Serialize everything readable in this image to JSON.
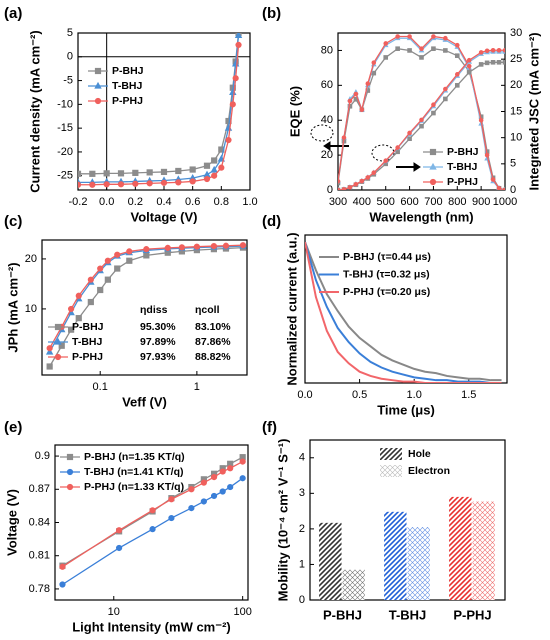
{
  "chart_data": [
    {
      "type": "line",
      "label": "(a)",
      "x_label": "Voltage (V)",
      "y_label": "Current density (mA cm⁻²)",
      "xlim": [
        -0.2,
        1.0
      ],
      "xticks": [
        -0.2,
        {
          "value": 0,
          "label": "0.0"
        },
        0.2,
        0.4,
        0.6,
        0.8,
        {
          "value": 1,
          "label": "1.0"
        }
      ],
      "ylim": [
        -28,
        5
      ],
      "yticks": [
        5,
        0,
        -5,
        -10,
        -15,
        -20,
        -25
      ],
      "zero_lines": true,
      "legend": "center left",
      "x": [
        -0.2,
        -0.1,
        0,
        0.1,
        0.2,
        0.3,
        0.4,
        0.5,
        0.6,
        0.7,
        0.75,
        0.8,
        0.85,
        0.88,
        0.9,
        0.92
      ],
      "series": [
        {
          "name": "P-BHJ",
          "color": "#8c8c8c",
          "marker": "square",
          "values": [
            -24.6,
            -24.6,
            -24.5,
            -24.5,
            -24.4,
            -24.3,
            -24.2,
            -24.0,
            -23.7,
            -22.9,
            -21.8,
            -19.5,
            -13.5,
            -6.5,
            -1.0,
            5.0
          ]
        },
        {
          "name": "T-BHJ",
          "color": "#4a8fd4",
          "marker": "triangle",
          "values": [
            -26.4,
            -26.4,
            -26.3,
            -26.3,
            -26.2,
            -26.1,
            -26.0,
            -25.8,
            -25.5,
            -24.8,
            -23.8,
            -21.5,
            -15.0,
            -7.5,
            -1.5,
            4.5
          ]
        },
        {
          "name": "P-PHJ",
          "color": "#f0605d",
          "marker": "circle",
          "values": [
            -26.9,
            -26.9,
            -26.8,
            -26.8,
            -26.7,
            -26.6,
            -26.5,
            -26.4,
            -26.2,
            -25.7,
            -25.0,
            -23.3,
            -17.5,
            -10.0,
            -4.5,
            2.5
          ]
        }
      ]
    },
    {
      "type": "line",
      "label": "(b)",
      "x_label": "Wavelength (nm)",
      "y_label": "EQE (%)",
      "y2_label": "Integrated JSC (mA cm⁻²)",
      "xlim": [
        300,
        1000
      ],
      "xticks": [
        300,
        400,
        500,
        600,
        700,
        800,
        900,
        1000
      ],
      "ylim": [
        0,
        90
      ],
      "yticks": [
        0,
        20,
        40,
        60,
        80
      ],
      "y2lim": [
        0,
        30
      ],
      "y2ticks": [
        0,
        5,
        10,
        15,
        20,
        25,
        30
      ],
      "legend": "lower right",
      "x": [
        300,
        325,
        350,
        375,
        400,
        425,
        450,
        500,
        550,
        600,
        650,
        700,
        750,
        800,
        850,
        900,
        925,
        950,
        975,
        1000
      ],
      "series": [
        {
          "name": "P-BHJ",
          "color": "#8c8c8c",
          "marker": "square",
          "values": [
            4,
            28,
            48,
            52,
            46,
            57,
            67,
            76,
            81,
            80,
            76,
            81,
            80,
            77,
            68,
            42,
            22,
            7,
            1,
            0
          ]
        },
        {
          "name": "T-BHJ",
          "color": "#7fb6e6",
          "marker": "triangle",
          "values": [
            5,
            30,
            52,
            56,
            46,
            60,
            72,
            83,
            87,
            87,
            80,
            87,
            86,
            82,
            70,
            38,
            18,
            5,
            1,
            0
          ]
        },
        {
          "name": "P-PHJ",
          "color": "#f0605d",
          "marker": "circle",
          "values": [
            5,
            30,
            51,
            55,
            46,
            61,
            73,
            84,
            88,
            88,
            81,
            88,
            87,
            83,
            71,
            40,
            20,
            6,
            1,
            0
          ]
        },
        {
          "color": "#8c8c8c",
          "marker": "square",
          "axis": "y2",
          "values": [
            0,
            0.1,
            0.5,
            1.0,
            1.6,
            2.2,
            3.0,
            5.0,
            7.3,
            9.8,
            12.2,
            14.7,
            17.4,
            20.0,
            22.5,
            24.0,
            24.3,
            24.4,
            24.4,
            24.4
          ]
        },
        {
          "color": "#7fb6e6",
          "marker": "triangle",
          "axis": "y2",
          "values": [
            0,
            0.1,
            0.5,
            1.1,
            1.7,
            2.4,
            3.3,
            5.5,
            8.0,
            10.7,
            13.2,
            16.0,
            19.0,
            21.8,
            24.5,
            26.0,
            26.3,
            26.4,
            26.4,
            26.4
          ]
        },
        {
          "color": "#f0605d",
          "marker": "circle",
          "axis": "y2",
          "values": [
            0,
            0.1,
            0.5,
            1.1,
            1.7,
            2.4,
            3.3,
            5.6,
            8.1,
            10.9,
            13.4,
            16.3,
            19.3,
            22.1,
            24.8,
            26.3,
            26.6,
            26.7,
            26.7,
            26.7
          ]
        }
      ]
    },
    {
      "type": "line",
      "label": "(c)",
      "x_label": "Veff (V)",
      "y_label": "JPh (mA cm⁻²)",
      "xlim": [
        0.025,
        3.3
      ],
      "xticks": [
        0.1,
        1
      ],
      "xlog": true,
      "ylim": [
        4,
        26
      ],
      "yticks": [
        10,
        20
      ],
      "ylog": true,
      "legend": "lower left",
      "x": [
        0.03,
        0.04,
        0.05,
        0.06,
        0.08,
        0.1,
        0.12,
        0.15,
        0.2,
        0.3,
        0.5,
        0.7,
        1,
        1.5,
        2,
        3
      ],
      "series": [
        {
          "name": "P-BHJ",
          "color": "#8c8c8c",
          "marker": "square",
          "values": [
            4.5,
            6.0,
            7.5,
            8.8,
            11,
            13,
            15,
            17.5,
            19.5,
            21,
            21.8,
            22.2,
            22.6,
            22.9,
            23.1,
            23.4
          ]
        },
        {
          "name": "T-BHJ",
          "color": "#4a8fd4",
          "marker": "triangle",
          "values": [
            5.5,
            7.5,
            9.5,
            11.5,
            14.5,
            17,
            19,
            20.8,
            21.8,
            22.5,
            23,
            23.2,
            23.4,
            23.6,
            23.7,
            23.9
          ]
        },
        {
          "name": "P-PHJ",
          "color": "#f0605d",
          "marker": "circle",
          "values": [
            5.8,
            7.8,
            10,
            12,
            15,
            17.5,
            19.5,
            21.2,
            22.2,
            22.9,
            23.3,
            23.5,
            23.7,
            23.9,
            24,
            24.2
          ]
        }
      ],
      "table": {
        "headers": [
          "ηdiss",
          "ηcoll"
        ],
        "rows": [
          [
            "95.30%",
            "83.10%"
          ],
          [
            "97.89%",
            "87.86%"
          ],
          [
            "97.93%",
            "88.82%"
          ]
        ]
      }
    },
    {
      "type": "line",
      "label": "(d)",
      "x_label": "Time (μs)",
      "y_label": "Normalized current (a.u.)",
      "xlim": [
        0,
        1.85
      ],
      "xticks": [
        {
          "value": 0,
          "label": "0.0"
        },
        0.5,
        {
          "value": 1,
          "label": "1.0"
        },
        1.5
      ],
      "ylim": [
        0,
        1.05
      ],
      "legend": "upper right",
      "x": [
        0,
        0.1,
        0.2,
        0.3,
        0.4,
        0.5,
        0.6,
        0.7,
        0.8,
        0.9,
        1.0,
        1.1,
        1.2,
        1.3,
        1.4,
        1.5,
        1.6,
        1.7,
        1.8
      ],
      "series": [
        {
          "name": "P-BHJ (τ=0.44 μs)",
          "color": "#888888",
          "values": [
            1.0,
            0.8,
            0.63,
            0.51,
            0.4,
            0.32,
            0.26,
            0.2,
            0.16,
            0.13,
            0.1,
            0.08,
            0.07,
            0.05,
            0.04,
            0.03,
            0.03,
            0.02,
            0.02
          ]
        },
        {
          "name": "T-BHJ (τ=0.32 μs)",
          "color": "#3a7fd8",
          "values": [
            1.0,
            0.73,
            0.54,
            0.39,
            0.29,
            0.21,
            0.15,
            0.11,
            0.08,
            0.06,
            0.04,
            0.03,
            0.02,
            0.02,
            0.01,
            0.01,
            0.01,
            0,
            0
          ]
        },
        {
          "name": "P-PHJ (τ=0.20 μs)",
          "color": "#f2666a",
          "values": [
            1.0,
            0.61,
            0.37,
            0.22,
            0.14,
            0.08,
            0.05,
            0.03,
            0.02,
            0.01,
            0.01,
            0,
            0,
            0,
            0,
            0,
            0,
            0,
            0
          ]
        }
      ]
    },
    {
      "type": "line",
      "label": "(e)",
      "x_label": "Light Intensity (mW cm⁻²)",
      "y_label": "Voltage (V)",
      "xlim": [
        3.5,
        110
      ],
      "xticks": [
        10,
        100
      ],
      "xlog": true,
      "ylim": [
        0.77,
        0.91
      ],
      "yticks": [
        0.78,
        0.81,
        0.84,
        0.87,
        0.9
      ],
      "legend": "upper left",
      "x": [
        4,
        11,
        20,
        28,
        40,
        50,
        60,
        70,
        80,
        100
      ],
      "series": [
        {
          "name": "P-BHJ  (n=1.35 KT/q)",
          "color": "#8c8c8c",
          "marker": "square",
          "values": [
            0.801,
            0.832,
            0.85,
            0.862,
            0.872,
            0.879,
            0.884,
            0.889,
            0.893,
            0.899
          ]
        },
        {
          "name": "T-BHJ  (n=1.41 KT/q)",
          "color": "#3a7fd8",
          "marker": "circle",
          "values": [
            0.784,
            0.817,
            0.834,
            0.844,
            0.853,
            0.859,
            0.864,
            0.868,
            0.872,
            0.88
          ]
        },
        {
          "name": "P-PHJ  (n=1.33 KT/q)",
          "color": "#f0605d",
          "marker": "circle",
          "values": [
            0.8,
            0.833,
            0.851,
            0.861,
            0.87,
            0.876,
            0.881,
            0.886,
            0.889,
            0.895
          ]
        }
      ]
    },
    {
      "type": "bar",
      "label": "(f)",
      "y_label": "Mobility (10⁻⁴ cm² V⁻¹ S⁻¹)",
      "ylim": [
        0,
        4.5
      ],
      "yticks": [
        0,
        1,
        2,
        3,
        4
      ],
      "legend": "upper center",
      "categories": [
        "P-BHJ",
        "T-BHJ",
        "P-PHJ"
      ],
      "category_colors": [
        "#333333",
        "#1f5fd6",
        "#e8302e"
      ],
      "series": [
        {
          "name": "Hole",
          "color": "#333333",
          "pattern": "diagonal",
          "values": [
            2.17,
            2.48,
            2.9
          ]
        },
        {
          "name": "Electron",
          "color": "#999999",
          "pattern": "check",
          "values": [
            0.85,
            2.05,
            2.77
          ]
        }
      ]
    }
  ]
}
